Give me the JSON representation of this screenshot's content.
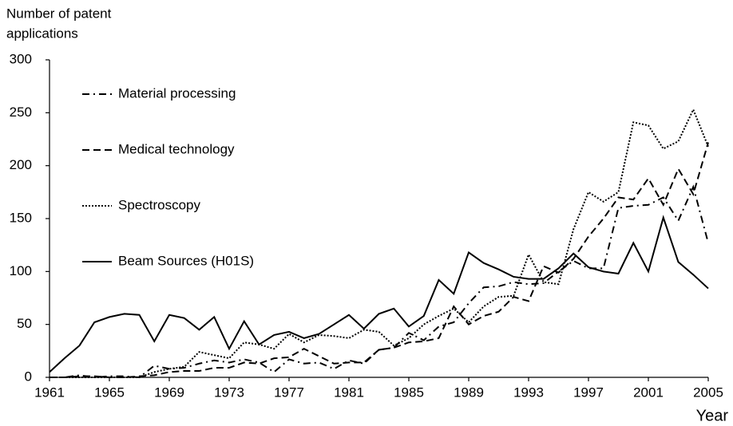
{
  "chart_data": {
    "type": "line",
    "y_label": [
      "Number of patent",
      "applications"
    ],
    "x_label": "Year",
    "x": [
      1961,
      1962,
      1963,
      1964,
      1965,
      1966,
      1967,
      1968,
      1969,
      1970,
      1971,
      1972,
      1973,
      1974,
      1975,
      1976,
      1977,
      1978,
      1979,
      1980,
      1981,
      1982,
      1983,
      1984,
      1985,
      1986,
      1987,
      1988,
      1989,
      1990,
      1991,
      1992,
      1993,
      1994,
      1995,
      1996,
      1997,
      1998,
      1999,
      2000,
      2001,
      2002,
      2003,
      2004,
      2005
    ],
    "xlim": [
      1961,
      2005
    ],
    "xticks": [
      1961,
      1965,
      1969,
      1973,
      1977,
      1981,
      1985,
      1989,
      1993,
      1997,
      2001,
      2005
    ],
    "ylim": [
      0,
      300
    ],
    "yticks": [
      0,
      50,
      100,
      150,
      200,
      250,
      300
    ],
    "grid": false,
    "series": [
      {
        "name": "Material processing",
        "color": "#000000",
        "dash": "dashdot",
        "values": [
          0,
          0,
          2,
          0,
          1,
          1,
          0,
          11,
          8,
          9,
          13,
          16,
          14,
          17,
          14,
          5,
          17,
          13,
          14,
          8,
          16,
          13,
          26,
          28,
          42,
          35,
          48,
          52,
          70,
          85,
          86,
          90,
          88,
          89,
          100,
          110,
          103,
          103,
          160,
          162,
          163,
          170,
          148,
          180,
          127
        ]
      },
      {
        "name": "Medical technology",
        "color": "#000000",
        "dash": "dashed",
        "values": [
          0,
          0,
          1,
          1,
          0,
          0,
          1,
          2,
          5,
          6,
          6,
          9,
          9,
          14,
          13,
          18,
          19,
          27,
          20,
          13,
          14,
          14,
          26,
          28,
          33,
          34,
          37,
          67,
          50,
          58,
          62,
          76,
          72,
          105,
          99,
          112,
          133,
          150,
          170,
          168,
          188,
          163,
          197,
          173,
          222
        ]
      },
      {
        "name": "Spectroscopy",
        "color": "#000000",
        "dash": "dotted",
        "values": [
          0,
          0,
          0,
          0,
          0,
          0,
          0,
          5,
          8,
          10,
          24,
          21,
          18,
          33,
          31,
          27,
          41,
          33,
          40,
          39,
          37,
          45,
          43,
          30,
          37,
          50,
          58,
          65,
          52,
          67,
          76,
          77,
          116,
          90,
          88,
          140,
          175,
          166,
          175,
          241,
          238,
          216,
          223,
          253,
          218
        ]
      },
      {
        "name": "Beam Sources (H01S)",
        "color": "#000000",
        "dash": "solid",
        "values": [
          5,
          18,
          30,
          52,
          57,
          60,
          59,
          34,
          59,
          56,
          45,
          57,
          27,
          53,
          31,
          40,
          43,
          37,
          41,
          50,
          59,
          46,
          60,
          65,
          48,
          58,
          92,
          79,
          118,
          108,
          102,
          95,
          93,
          93,
          103,
          117,
          104,
          100,
          98,
          127,
          100,
          151,
          109,
          97,
          84
        ]
      }
    ]
  }
}
